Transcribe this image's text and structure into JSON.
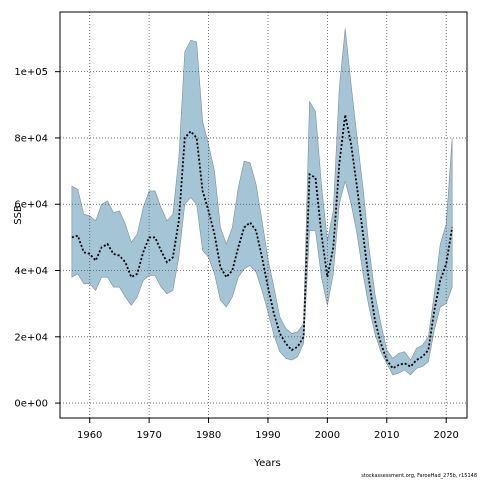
{
  "chart_data": {
    "type": "area",
    "xlabel": "Years",
    "ylabel": "SSB",
    "xlim": [
      1955,
      2023.5
    ],
    "ylim": [
      -4500,
      118000
    ],
    "x_ticks": [
      1960,
      1970,
      1980,
      1990,
      2000,
      2010,
      2020
    ],
    "y_ticks": [
      0,
      20000,
      40000,
      60000,
      80000,
      100000
    ],
    "x_tick_labels": [
      "1960",
      "1970",
      "1980",
      "1990",
      "2000",
      "2010",
      "2020"
    ],
    "y_tick_labels": [
      "0e+00",
      "2e+04",
      "4e+04",
      "6e+04",
      "8e+04",
      "1e+05"
    ],
    "grid": true,
    "colors": {
      "band_fill": "#a3c5d6",
      "band_edge": "#7f8f99",
      "line": "#000000",
      "grid": "#555555",
      "frame": "#000000"
    },
    "x": [
      1957,
      1958,
      1959,
      1960,
      1961,
      1962,
      1963,
      1964,
      1965,
      1966,
      1967,
      1968,
      1969,
      1970,
      1971,
      1972,
      1973,
      1974,
      1975,
      1976,
      1977,
      1978,
      1979,
      1980,
      1981,
      1982,
      1983,
      1984,
      1985,
      1986,
      1987,
      1988,
      1989,
      1990,
      1991,
      1992,
      1993,
      1994,
      1995,
      1996,
      1997,
      1998,
      1999,
      2000,
      2001,
      2002,
      2003,
      2004,
      2005,
      2006,
      2007,
      2008,
      2009,
      2010,
      2011,
      2012,
      2013,
      2014,
      2015,
      2016,
      2017,
      2018,
      2019,
      2020,
      2021
    ],
    "series": [
      {
        "values": [
          50000,
          50500,
          45500,
          45000,
          43000,
          47000,
          48000,
          45000,
          44500,
          42500,
          38000,
          39000,
          45500,
          50000,
          50000,
          46000,
          42500,
          44000,
          55000,
          80000,
          82000,
          80000,
          64000,
          58000,
          51000,
          41000,
          38000,
          40000,
          47000,
          53000,
          54500,
          52000,
          44000,
          35000,
          27000,
          21000,
          18000,
          16000,
          17000,
          20000,
          69000,
          68000,
          51000,
          38000,
          47000,
          72000,
          87000,
          78000,
          65000,
          51000,
          37000,
          25000,
          18000,
          13000,
          10500,
          11500,
          12000,
          11000,
          13000,
          14000,
          16000,
          28000,
          37000,
          42000,
          53000
        ]
      },
      {
        "values": [
          38000,
          39000,
          36000,
          36000,
          34000,
          38000,
          38000,
          35000,
          35000,
          32000,
          29500,
          32000,
          37000,
          38500,
          38500,
          35000,
          33000,
          34000,
          44000,
          60000,
          62000,
          60000,
          46000,
          44000,
          39000,
          31000,
          29000,
          32000,
          38000,
          40500,
          41500,
          39500,
          34000,
          27500,
          20500,
          15500,
          13500,
          13000,
          14000,
          18000,
          52000,
          52000,
          38000,
          29500,
          39000,
          60000,
          67000,
          60000,
          51000,
          39000,
          29000,
          21000,
          15500,
          12000,
          8500,
          9000,
          10000,
          8500,
          10500,
          11000,
          12500,
          22000,
          29000,
          30000,
          35000
        ]
      },
      {
        "values": [
          65500,
          64500,
          57000,
          56500,
          55000,
          60000,
          61000,
          57500,
          58000,
          54000,
          48500,
          51000,
          59000,
          64000,
          64000,
          59000,
          55000,
          57000,
          74000,
          106000,
          109500,
          109000,
          85000,
          78000,
          70000,
          53000,
          48000,
          53000,
          65000,
          73000,
          72500,
          66000,
          55000,
          43500,
          35000,
          26000,
          22500,
          21000,
          21500,
          24000,
          91000,
          88000,
          66000,
          49000,
          58000,
          95000,
          113000,
          96000,
          80000,
          65000,
          47000,
          33000,
          24000,
          16000,
          13500,
          15000,
          15500,
          13000,
          16500,
          17500,
          20000,
          33000,
          48000,
          54000,
          80000
        ]
      }
    ]
  },
  "footer_note": "stockassessment.org, FaroeHad_275b, r15148"
}
